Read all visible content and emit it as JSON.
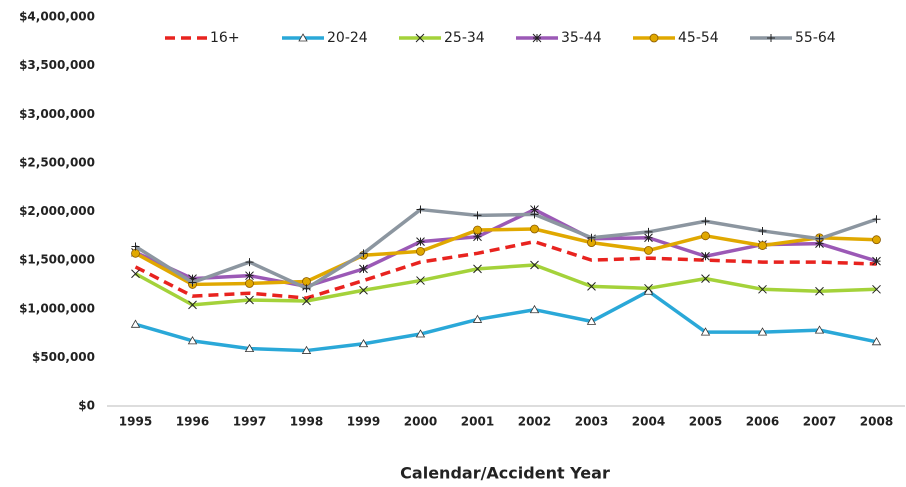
{
  "chart_data": {
    "type": "line",
    "x_label": "Calendar/Accident Year",
    "categories": [
      "1995",
      "1996",
      "1997",
      "1998",
      "1999",
      "2000",
      "2001",
      "2002",
      "2003",
      "2004",
      "2005",
      "2006",
      "2007",
      "2008"
    ],
    "series": [
      {
        "name": "16+",
        "color": "#e8231f",
        "dashed": true,
        "marker": "none",
        "values": [
          1430000,
          1130000,
          1160000,
          1110000,
          1290000,
          1480000,
          1570000,
          1690000,
          1500000,
          1520000,
          1500000,
          1480000,
          1480000,
          1460000
        ]
      },
      {
        "name": "20-24",
        "color": "#2aa8d8",
        "dashed": false,
        "marker": "triangle",
        "values": [
          840000,
          670000,
          590000,
          570000,
          640000,
          740000,
          890000,
          990000,
          870000,
          1180000,
          760000,
          760000,
          780000,
          660000
        ]
      },
      {
        "name": "25-34",
        "color": "#a4d23a",
        "dashed": false,
        "marker": "x",
        "values": [
          1360000,
          1040000,
          1090000,
          1080000,
          1190000,
          1290000,
          1410000,
          1450000,
          1230000,
          1210000,
          1310000,
          1200000,
          1180000,
          1200000
        ]
      },
      {
        "name": "35-44",
        "color": "#9b59b6",
        "dashed": false,
        "marker": "star",
        "values": [
          1580000,
          1310000,
          1340000,
          1230000,
          1410000,
          1690000,
          1740000,
          2020000,
          1720000,
          1730000,
          1540000,
          1660000,
          1670000,
          1490000
        ]
      },
      {
        "name": "45-54",
        "color": "#e0a800",
        "dashed": false,
        "marker": "circle",
        "values": [
          1570000,
          1250000,
          1260000,
          1280000,
          1550000,
          1590000,
          1810000,
          1820000,
          1680000,
          1600000,
          1750000,
          1650000,
          1730000,
          1710000
        ]
      },
      {
        "name": "55-64",
        "color": "#8c96a0",
        "dashed": false,
        "marker": "plus",
        "values": [
          1640000,
          1270000,
          1480000,
          1210000,
          1570000,
          2020000,
          1960000,
          1970000,
          1730000,
          1790000,
          1900000,
          1800000,
          1720000,
          1920000
        ]
      }
    ],
    "ylim": [
      0,
      4000000
    ],
    "yticks": [
      {
        "value": 0,
        "label": "$0"
      },
      {
        "value": 500000,
        "label": "$500,000"
      },
      {
        "value": 1000000,
        "label": "$1,000,000"
      },
      {
        "value": 1500000,
        "label": "$1,500,000"
      },
      {
        "value": 2000000,
        "label": "$2,000,000"
      },
      {
        "value": 2500000,
        "label": "$2,500,000"
      },
      {
        "value": 3000000,
        "label": "$3,000,000"
      },
      {
        "value": 3500000,
        "label": "$3,500,000"
      },
      {
        "value": 4000000,
        "label": "$4,000,000"
      }
    ],
    "grid": false,
    "legend": "top"
  }
}
